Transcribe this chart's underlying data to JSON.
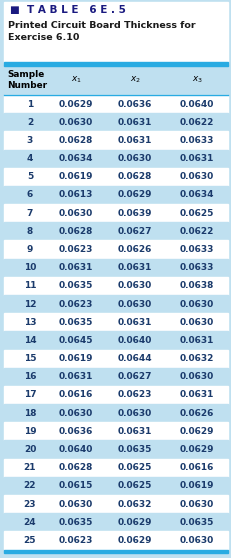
{
  "title_line1": "■  T A B L E   6 E . 5",
  "title_line2": "Printed Circuit Board Thickness for\nExercise 6.10",
  "rows": [
    [
      1,
      0.0629,
      0.0636,
      0.064
    ],
    [
      2,
      0.063,
      0.0631,
      0.0622
    ],
    [
      3,
      0.0628,
      0.0631,
      0.0633
    ],
    [
      4,
      0.0634,
      0.063,
      0.0631
    ],
    [
      5,
      0.0619,
      0.0628,
      0.063
    ],
    [
      6,
      0.0613,
      0.0629,
      0.0634
    ],
    [
      7,
      0.063,
      0.0639,
      0.0625
    ],
    [
      8,
      0.0628,
      0.0627,
      0.0622
    ],
    [
      9,
      0.0623,
      0.0626,
      0.0633
    ],
    [
      10,
      0.0631,
      0.0631,
      0.0633
    ],
    [
      11,
      0.0635,
      0.063,
      0.0638
    ],
    [
      12,
      0.0623,
      0.063,
      0.063
    ],
    [
      13,
      0.0635,
      0.0631,
      0.063
    ],
    [
      14,
      0.0645,
      0.064,
      0.0631
    ],
    [
      15,
      0.0619,
      0.0644,
      0.0632
    ],
    [
      16,
      0.0631,
      0.0627,
      0.063
    ],
    [
      17,
      0.0616,
      0.0623,
      0.0631
    ],
    [
      18,
      0.063,
      0.063,
      0.0626
    ],
    [
      19,
      0.0636,
      0.0631,
      0.0629
    ],
    [
      20,
      0.064,
      0.0635,
      0.0629
    ],
    [
      21,
      0.0628,
      0.0625,
      0.0616
    ],
    [
      22,
      0.0615,
      0.0625,
      0.0619
    ],
    [
      23,
      0.063,
      0.0632,
      0.063
    ],
    [
      24,
      0.0635,
      0.0629,
      0.0635
    ],
    [
      25,
      0.0623,
      0.0629,
      0.063
    ]
  ],
  "row_bg_white": "#FFFFFF",
  "row_bg_blue": "#BFE0F0",
  "header_bg": "#BFE0F0",
  "outer_bg": "#BFE0F0",
  "title_bg": "#FFFFFF",
  "thick_border_color": "#29ABE2",
  "thin_border_color": "#29ABE2",
  "title_heading_color": "#1A1A80",
  "subtitle_color": "#1A1A1A",
  "data_text_color": "#1A3A6B",
  "header_text_color": "#000000",
  "square_color": "#29ABE2"
}
